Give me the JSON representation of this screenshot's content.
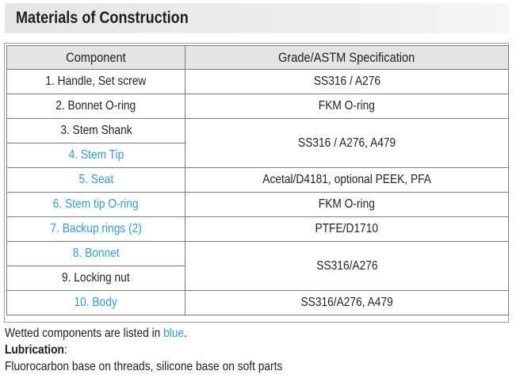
{
  "title": "Materials of Construction",
  "table": {
    "headers": {
      "component": "Component",
      "specification": "Grade/ASTM Specification"
    },
    "rows": [
      {
        "component": "1. Handle, Set screw",
        "spec": "SS316 / A276"
      },
      {
        "component": "2. Bonnet O-ring",
        "spec": "FKM O-ring"
      },
      {
        "component": "3. Stem Shank",
        "spec": "SS316 / A276, A479"
      },
      {
        "component": "4. Stem Tip",
        "spec": ""
      },
      {
        "component": "5. Seat",
        "spec": "Acetal/D4181, optional PEEK, PFA"
      },
      {
        "component": "6. Stem tip O-ring",
        "spec": "FKM O-ring"
      },
      {
        "component": "7. Backup rings (2)",
        "spec": "PTFE/D1710"
      },
      {
        "component": "8. Bonnet",
        "spec": "SS316/A276"
      },
      {
        "component": "9. Locking nut",
        "spec": ""
      },
      {
        "component": "10. Body",
        "spec": "SS316/A276, A479"
      }
    ]
  },
  "notes": {
    "wetted_prefix": "Wetted components are listed in ",
    "wetted_word": "blue",
    "wetted_suffix": ".",
    "lubrication_label": "Lubrication",
    "lubrication_colon": ":",
    "lubrication_text": "Fluorocarbon base on threads, silicone base on soft parts"
  },
  "colors": {
    "wetted": "#2a9fd8",
    "header_bg": "#e4e4e4",
    "title_bg": "#e6e6e6",
    "border": "#7a7a7a"
  }
}
